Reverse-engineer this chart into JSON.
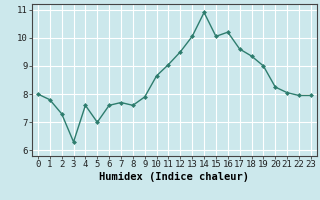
{
  "x": [
    0,
    1,
    2,
    3,
    4,
    5,
    6,
    7,
    8,
    9,
    10,
    11,
    12,
    13,
    14,
    15,
    16,
    17,
    18,
    19,
    20,
    21,
    22,
    23
  ],
  "y": [
    8.0,
    7.8,
    7.3,
    6.3,
    7.6,
    7.0,
    7.6,
    7.7,
    7.6,
    7.9,
    8.65,
    9.05,
    9.5,
    10.05,
    10.9,
    10.05,
    10.2,
    9.6,
    9.35,
    9.0,
    8.25,
    8.05,
    7.95,
    7.95
  ],
  "line_color": "#2e7d6e",
  "marker": "D",
  "marker_size": 2.0,
  "bg_color": "#cce8ec",
  "grid_color": "#ffffff",
  "axis_color": "#444444",
  "xlabel": "Humidex (Indice chaleur)",
  "xlim": [
    -0.5,
    23.5
  ],
  "ylim": [
    5.8,
    11.2
  ],
  "yticks": [
    6,
    7,
    8,
    9,
    10,
    11
  ],
  "xticks": [
    0,
    1,
    2,
    3,
    4,
    5,
    6,
    7,
    8,
    9,
    10,
    11,
    12,
    13,
    14,
    15,
    16,
    17,
    18,
    19,
    20,
    21,
    22,
    23
  ],
  "xlabel_fontsize": 7.5,
  "tick_fontsize": 6.5,
  "line_width": 1.0
}
